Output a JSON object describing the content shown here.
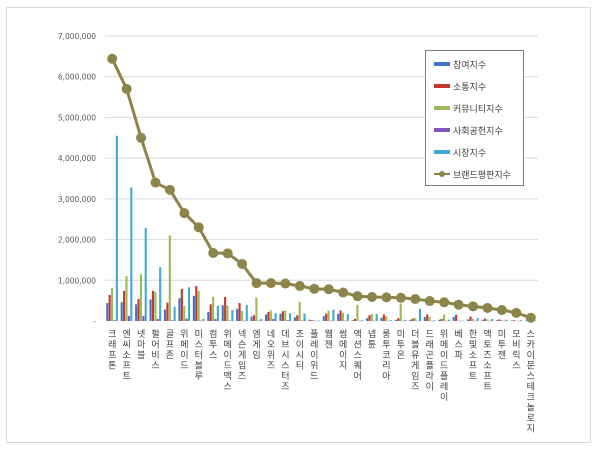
{
  "chart_data": {
    "type": "bar+line",
    "title": "",
    "xlabel": "",
    "ylabel": "",
    "ylim": [
      0,
      7000000
    ],
    "yticks": [
      0,
      1000000,
      2000000,
      3000000,
      4000000,
      5000000,
      6000000,
      7000000
    ],
    "ytick_labels": [
      "-",
      "1,000,000",
      "2,000,000",
      "3,000,000",
      "4,000,000",
      "5,000,000",
      "6,000,000",
      "7,000,000"
    ],
    "grid": true,
    "legend_position": "upper right (inside plot)",
    "categories": [
      "크래프톤",
      "엔씨소프트",
      "넷마블",
      "펄어비스",
      "골프존",
      "위메이드",
      "미스터블루",
      "컴투스",
      "위메이드맥스",
      "넥슨게임즈",
      "엠게임",
      "네오위즈",
      "데브시스터즈",
      "조이시티",
      "플레이위드",
      "웹젠",
      "썸에이지",
      "액션스퀘어",
      "넵튠",
      "룽투코리아",
      "미투온",
      "더블유게임즈",
      "드래곤플라이",
      "위메이드플레이",
      "베스파",
      "한빛소프트",
      "액토즈소프트",
      "미투젠",
      "모비릭스",
      "스카이문스테크놀로지"
    ],
    "series": [
      {
        "name": "참여지수",
        "type": "bar",
        "color": "#4472c4",
        "values": [
          440000,
          460000,
          410000,
          530000,
          280000,
          560000,
          620000,
          220000,
          390000,
          300000,
          110000,
          160000,
          180000,
          90000,
          30000,
          120000,
          180000,
          20000,
          70000,
          80000,
          30000,
          30000,
          100000,
          30000,
          100000,
          40000,
          30000,
          20000,
          10000,
          10000
        ]
      },
      {
        "name": "소통지수",
        "type": "bar",
        "color": "#c0392b",
        "values": [
          640000,
          740000,
          540000,
          740000,
          450000,
          790000,
          860000,
          410000,
          590000,
          440000,
          140000,
          220000,
          240000,
          140000,
          20000,
          180000,
          260000,
          50000,
          140000,
          160000,
          70000,
          60000,
          160000,
          50000,
          150000,
          110000,
          60000,
          40000,
          20000,
          10000
        ]
      },
      {
        "name": "커뮤니티지수",
        "type": "bar",
        "color": "#9bbb59",
        "values": [
          810000,
          1100000,
          1150000,
          720000,
          2100000,
          370000,
          740000,
          590000,
          380000,
          250000,
          580000,
          260000,
          260000,
          470000,
          20000,
          260000,
          200000,
          400000,
          170000,
          120000,
          430000,
          70000,
          100000,
          160000,
          10000,
          50000,
          40000,
          20000,
          10000,
          5000
        ]
      },
      {
        "name": "사회공헌지수",
        "type": "bar",
        "color": "#7e57c2",
        "values": [
          20000,
          120000,
          120000,
          50000,
          20000,
          60000,
          10000,
          50000,
          10000,
          5000,
          10000,
          50000,
          20000,
          10000,
          5000,
          10000,
          10000,
          5000,
          5000,
          5000,
          5000,
          5000,
          5000,
          5000,
          5000,
          5000,
          5000,
          5000,
          5000,
          5000
        ]
      },
      {
        "name": "시장지수",
        "type": "bar",
        "color": "#41a9d1",
        "values": [
          4550000,
          3280000,
          2280000,
          1320000,
          350000,
          830000,
          50000,
          370000,
          270000,
          390000,
          50000,
          190000,
          190000,
          180000,
          10000,
          280000,
          170000,
          20000,
          170000,
          20000,
          30000,
          300000,
          20000,
          30000,
          10000,
          70000,
          50000,
          30000,
          20000,
          10000
        ]
      },
      {
        "name": "브랜드평판지수",
        "type": "line",
        "color": "#8d8449",
        "values": [
          6440000,
          5700000,
          4500000,
          3400000,
          3220000,
          2650000,
          2300000,
          1670000,
          1660000,
          1400000,
          930000,
          930000,
          920000,
          860000,
          790000,
          780000,
          700000,
          610000,
          590000,
          580000,
          570000,
          540000,
          490000,
          460000,
          400000,
          360000,
          320000,
          270000,
          200000,
          80000
        ]
      }
    ]
  },
  "legend": {
    "items": [
      {
        "label": "참여지수",
        "color": "#4472c4",
        "kind": "bar"
      },
      {
        "label": "소통지수",
        "color": "#c0392b",
        "kind": "bar"
      },
      {
        "label": "커뮤니티지수",
        "color": "#9bbb59",
        "kind": "bar"
      },
      {
        "label": "사회공헌지수",
        "color": "#7e57c2",
        "kind": "bar"
      },
      {
        "label": "시장지수",
        "color": "#41a9d1",
        "kind": "bar"
      },
      {
        "label": "브랜드평판지수",
        "color": "#8d8449",
        "kind": "line"
      }
    ]
  }
}
